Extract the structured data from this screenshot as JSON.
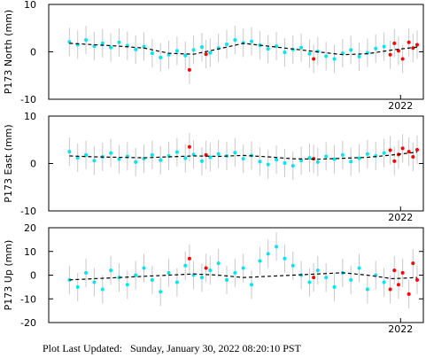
{
  "chart_data": [
    {
      "type": "scatter",
      "ylabel": "P173 North (mm)",
      "xlim": [
        2013.5,
        2022.55
      ],
      "xticks": [
        2022
      ],
      "ylim": [
        -10,
        10
      ],
      "yticks": [
        -10,
        0,
        10
      ],
      "series": [
        {
          "color": "#00e5ee",
          "error": 3,
          "error_color": "#c8c8c8",
          "x": [
            2014.0,
            2014.2,
            2014.4,
            2014.6,
            2014.8,
            2015.0,
            2015.2,
            2015.4,
            2015.6,
            2015.8,
            2016.0,
            2016.2,
            2016.4,
            2016.6,
            2016.8,
            2017.0,
            2017.2,
            2017.4,
            2017.6,
            2017.8,
            2018.0,
            2018.2,
            2018.4,
            2018.6,
            2018.8,
            2019.0,
            2019.2,
            2019.4,
            2019.6,
            2019.8,
            2020.0,
            2020.2,
            2020.4,
            2020.6,
            2020.8,
            2021.0,
            2021.2,
            2021.4,
            2021.6
          ],
          "values": [
            2.1,
            1.5,
            2.5,
            1.2,
            1.8,
            0.9,
            2.0,
            1.3,
            0.5,
            1.1,
            -0.3,
            -1.2,
            -0.6,
            0.2,
            -0.8,
            0.4,
            1.0,
            -0.2,
            0.8,
            1.6,
            2.5,
            1.9,
            2.2,
            1.4,
            0.6,
            1.2,
            -0.1,
            0.5,
            0.9,
            -0.4,
            0.1,
            -0.9,
            -1.5,
            -0.3,
            0.4,
            -1.0,
            -0.2,
            0.7,
            1.1
          ]
        },
        {
          "color": "#ff0000",
          "error": 3,
          "error_color": "#c8c8c8",
          "x": [
            2016.9,
            2017.3,
            2019.9,
            2021.75,
            2021.85,
            2021.95,
            2022.05,
            2022.2,
            2022.3,
            2022.4
          ],
          "values": [
            -3.8,
            -0.5,
            -1.5,
            -0.6,
            1.8,
            0.2,
            -1.5,
            2.0,
            0.8,
            1.5
          ]
        },
        {
          "color": "#000000",
          "style": "dashed",
          "x": [
            2014.0,
            2014.6,
            2015.2,
            2015.8,
            2016.4,
            2017.0,
            2017.6,
            2018.2,
            2018.8,
            2019.4,
            2020.0,
            2020.6,
            2021.2,
            2021.8,
            2022.4
          ],
          "values": [
            1.8,
            1.5,
            1.2,
            0.8,
            -0.3,
            -0.5,
            0.6,
            1.8,
            1.2,
            0.6,
            0.0,
            -0.6,
            -0.4,
            0.4,
            1.0
          ]
        }
      ]
    },
    {
      "type": "scatter",
      "ylabel": "P173 East (mm)",
      "xlim": [
        2013.5,
        2022.55
      ],
      "xticks": [
        2022
      ],
      "ylim": [
        -10,
        10
      ],
      "yticks": [
        -10,
        0,
        10
      ],
      "series": [
        {
          "color": "#00e5ee",
          "error": 3,
          "error_color": "#c8c8c8",
          "x": [
            2014.0,
            2014.2,
            2014.4,
            2014.6,
            2014.8,
            2015.0,
            2015.2,
            2015.4,
            2015.6,
            2015.8,
            2016.0,
            2016.2,
            2016.4,
            2016.6,
            2016.8,
            2017.0,
            2017.2,
            2017.4,
            2017.6,
            2017.8,
            2018.0,
            2018.2,
            2018.4,
            2018.6,
            2018.8,
            2019.0,
            2019.2,
            2019.4,
            2019.6,
            2019.8,
            2020.0,
            2020.2,
            2020.4,
            2020.6,
            2020.8,
            2021.0,
            2021.2,
            2021.4,
            2021.6
          ],
          "values": [
            2.5,
            1.2,
            1.8,
            0.6,
            1.4,
            2.2,
            0.9,
            1.5,
            0.3,
            1.0,
            1.8,
            0.7,
            1.6,
            2.4,
            1.1,
            1.9,
            0.5,
            1.3,
            2.0,
            1.6,
            2.3,
            1.0,
            1.7,
            0.4,
            -0.2,
            0.8,
            0.1,
            -0.5,
            0.6,
            1.2,
            0.3,
            1.5,
            0.9,
            1.8,
            0.4,
            1.1,
            2.0,
            1.6,
            2.2
          ]
        },
        {
          "color": "#ff0000",
          "error": 3,
          "error_color": "#c8c8c8",
          "x": [
            2016.9,
            2017.3,
            2019.9,
            2021.75,
            2021.85,
            2021.95,
            2022.05,
            2022.2,
            2022.3,
            2022.4
          ],
          "values": [
            3.5,
            1.8,
            1.0,
            2.8,
            0.5,
            1.9,
            3.2,
            2.5,
            1.4,
            2.9
          ]
        },
        {
          "color": "#000000",
          "style": "dashed",
          "x": [
            2014.0,
            2014.6,
            2015.2,
            2015.8,
            2016.4,
            2017.0,
            2017.6,
            2018.2,
            2018.8,
            2019.4,
            2020.0,
            2020.6,
            2021.2,
            2021.8,
            2022.4
          ],
          "values": [
            1.6,
            1.4,
            1.3,
            1.2,
            1.4,
            1.6,
            1.5,
            1.7,
            1.4,
            1.0,
            0.9,
            1.1,
            1.3,
            1.8,
            2.4
          ]
        }
      ]
    },
    {
      "type": "scatter",
      "ylabel": "P173 Up (mm)",
      "xlim": [
        2013.5,
        2022.55
      ],
      "xticks": [
        2022
      ],
      "ylim": [
        -20,
        20
      ],
      "yticks": [
        -20,
        -10,
        0,
        10,
        20
      ],
      "series": [
        {
          "color": "#00e5ee",
          "error": 6,
          "error_color": "#c8c8c8",
          "x": [
            2014.0,
            2014.2,
            2014.4,
            2014.6,
            2014.8,
            2015.0,
            2015.2,
            2015.4,
            2015.6,
            2015.8,
            2016.0,
            2016.2,
            2016.4,
            2016.6,
            2016.8,
            2017.0,
            2017.2,
            2017.4,
            2017.6,
            2017.8,
            2018.0,
            2018.2,
            2018.4,
            2018.6,
            2018.8,
            2019.0,
            2019.2,
            2019.4,
            2019.6,
            2019.8,
            2020.0,
            2020.2,
            2020.4,
            2020.6,
            2020.8,
            2021.0,
            2021.2,
            2021.4,
            2021.6
          ],
          "values": [
            -2,
            -5,
            1,
            -3,
            -6,
            2,
            -1,
            -4,
            0,
            3,
            -2,
            -7,
            1,
            -3,
            4,
            0,
            -1,
            2,
            5,
            -2,
            1,
            3,
            -4,
            6,
            9,
            12,
            7,
            4,
            0,
            -3,
            2,
            -1,
            -5,
            1,
            -2,
            3,
            -6,
            0,
            -3
          ]
        },
        {
          "color": "#ff0000",
          "error": 6,
          "error_color": "#c8c8c8",
          "x": [
            2016.9,
            2017.3,
            2019.9,
            2021.75,
            2021.85,
            2021.95,
            2022.05,
            2022.2,
            2022.3,
            2022.4
          ],
          "values": [
            7,
            3,
            -1,
            -6,
            2,
            -4,
            1,
            -8,
            5,
            -2
          ]
        },
        {
          "color": "#000000",
          "style": "dashed",
          "x": [
            2014.0,
            2014.6,
            2015.2,
            2015.8,
            2016.4,
            2017.0,
            2017.6,
            2018.2,
            2018.8,
            2019.4,
            2020.0,
            2020.6,
            2021.2,
            2021.8,
            2022.4
          ],
          "values": [
            -2,
            -1.5,
            -1,
            -0.5,
            0,
            0.5,
            0,
            -1,
            -0.5,
            0,
            0.5,
            1,
            0,
            -1.5,
            -1
          ]
        }
      ]
    }
  ],
  "footer": "Plot Last Updated:   Sunday, January 30, 2022 08:20:10 PST"
}
